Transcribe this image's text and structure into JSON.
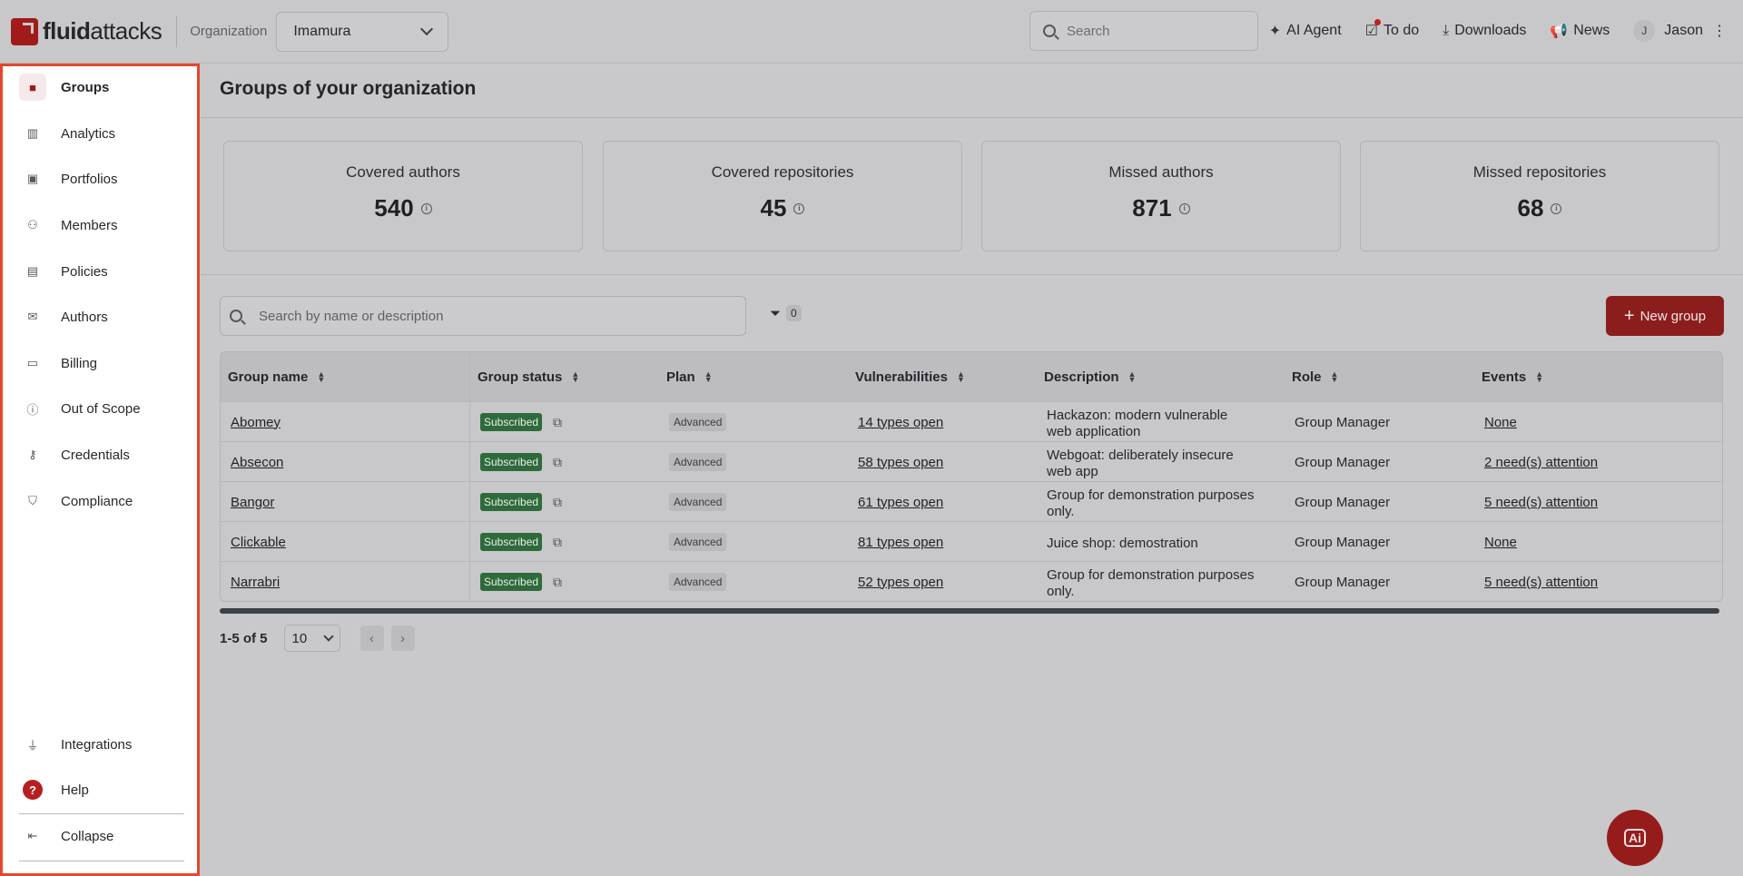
{
  "header": {
    "logo_bold": "fluid",
    "logo_rest": "attacks",
    "org_label": "Organization",
    "org_value": "Imamura",
    "search_placeholder": "Search",
    "links": [
      {
        "label": "AI Agent",
        "icon": "sparkle-icon"
      },
      {
        "label": "To do",
        "icon": "todo-icon"
      },
      {
        "label": "Downloads",
        "icon": "download-icon"
      },
      {
        "label": "News",
        "icon": "megaphone-icon"
      }
    ],
    "user_initial": "J",
    "user_name": "Jason"
  },
  "sidebar": {
    "items": [
      {
        "label": "Groups",
        "icon": "folder-icon",
        "glyph": "■"
      },
      {
        "label": "Analytics",
        "icon": "analytics-icon",
        "glyph": "▥"
      },
      {
        "label": "Portfolios",
        "icon": "briefcase-icon",
        "glyph": "▣"
      },
      {
        "label": "Members",
        "icon": "members-icon",
        "glyph": "⚇"
      },
      {
        "label": "Policies",
        "icon": "policies-icon",
        "glyph": "▤"
      },
      {
        "label": "Authors",
        "icon": "mail-icon",
        "glyph": "✉"
      },
      {
        "label": "Billing",
        "icon": "billing-icon",
        "glyph": "▭"
      },
      {
        "label": "Out of Scope",
        "icon": "out-of-scope-icon",
        "glyph": "ⓘ"
      },
      {
        "label": "Credentials",
        "icon": "key-icon",
        "glyph": "⚷"
      },
      {
        "label": "Compliance",
        "icon": "shield-icon",
        "glyph": "⛉"
      }
    ],
    "integrations": {
      "label": "Integrations",
      "glyph": "⏚"
    },
    "help": {
      "label": "Help",
      "glyph": "?"
    },
    "collapse": {
      "label": "Collapse",
      "glyph": "⇤"
    }
  },
  "main": {
    "title": "Groups of your organization",
    "cards": [
      {
        "label": "Covered authors",
        "value": "540"
      },
      {
        "label": "Covered repositories",
        "value": "45"
      },
      {
        "label": "Missed authors",
        "value": "871"
      },
      {
        "label": "Missed repositories",
        "value": "68"
      }
    ],
    "table_search_placeholder": "Search by name or description",
    "filter_count": "0",
    "new_group_label": "New group",
    "columns": [
      "Group name",
      "Group status",
      "Plan",
      "Vulnerabilities",
      "Description",
      "Role",
      "Events"
    ],
    "rows": [
      {
        "name": "Abomey",
        "status": "Subscribed",
        "plan": "Advanced",
        "vulns": "14 types open",
        "description": "Hackazon: modern vulnerable web application",
        "role": "Group Manager",
        "events": "None"
      },
      {
        "name": "Absecon",
        "status": "Subscribed",
        "plan": "Advanced",
        "vulns": "58 types open",
        "description": "Webgoat: deliberately insecure web app",
        "role": "Group Manager",
        "events": "2 need(s) attention"
      },
      {
        "name": "Bangor",
        "status": "Subscribed",
        "plan": "Advanced",
        "vulns": "61 types open",
        "description": "Group for demonstration purposes only.",
        "role": "Group Manager",
        "events": "5 need(s) attention"
      },
      {
        "name": "Clickable",
        "status": "Subscribed",
        "plan": "Advanced",
        "vulns": "81 types open",
        "description": "Juice shop: demostration",
        "role": "Group Manager",
        "events": "None"
      },
      {
        "name": "Narrabri",
        "status": "Subscribed",
        "plan": "Advanced",
        "vulns": "52 types open",
        "description": "Group for demonstration purposes only.",
        "role": "Group Manager",
        "events": "5 need(s) attention"
      }
    ],
    "pagination": {
      "range": "1-5 of 5",
      "page_size": "10"
    },
    "ai_fab_label": "Ai"
  }
}
